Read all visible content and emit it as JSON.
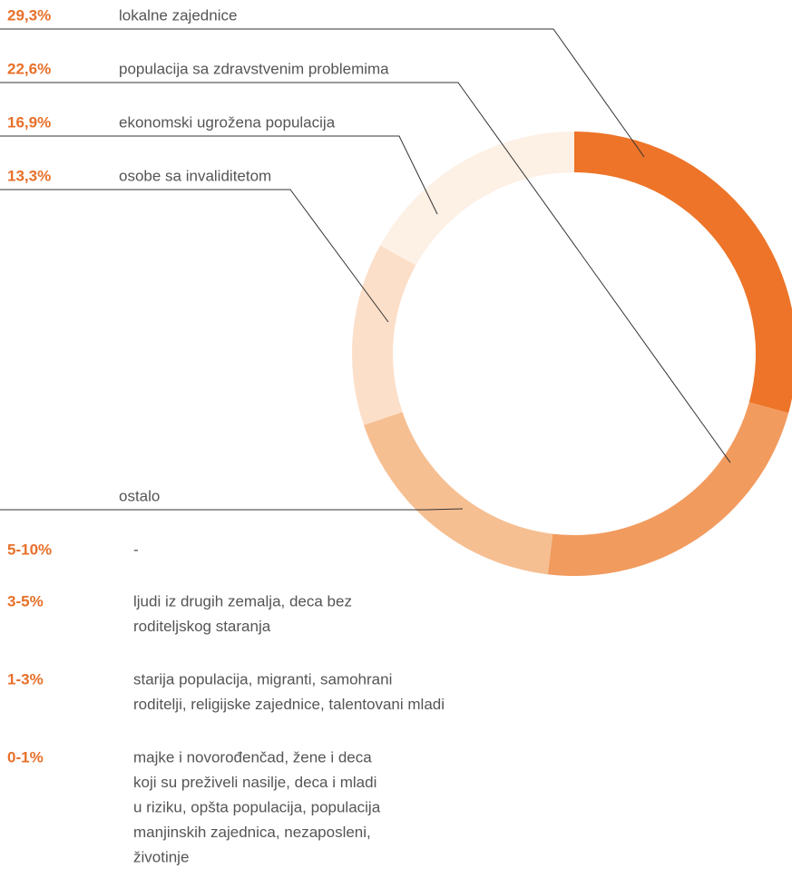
{
  "chart_data": {
    "type": "donut",
    "categories": [
      "lokalne zajednice",
      "populacija sa zdravstvenim problemima",
      "ostalo",
      "osobe sa invaliditetom",
      "ekonomski ugrožena populacija"
    ],
    "values": [
      29.3,
      22.6,
      17.9,
      13.3,
      16.9
    ],
    "value_labels": [
      "29,3%",
      "22,6%",
      null,
      "13,3%",
      "16,9%"
    ],
    "colors": [
      "#ed7428",
      "#f29b5e",
      "#f6bf92",
      "#fcdfc9",
      "#fdf0e5"
    ],
    "groups": [
      {
        "label": "5-10%",
        "lines": [
          "-"
        ]
      },
      {
        "label": "3-5%",
        "lines": [
          "ljudi iz drugih zemalja, deca bez",
          "roditeljskog staranja"
        ]
      },
      {
        "label": "1-3%",
        "lines": [
          "starija populacija, migranti, samohrani",
          "roditelji, religijske zajednice, talentovani mladi"
        ]
      },
      {
        "label": "0-1%",
        "lines": [
          "majke i novorođenčad, žene i deca",
          "koji su preživeli nasilje, deca i mladi",
          "u riziku, opšta populacija, populacija",
          "manjinskih zajednica, nezaposleni,",
          "životinje"
        ]
      }
    ]
  }
}
